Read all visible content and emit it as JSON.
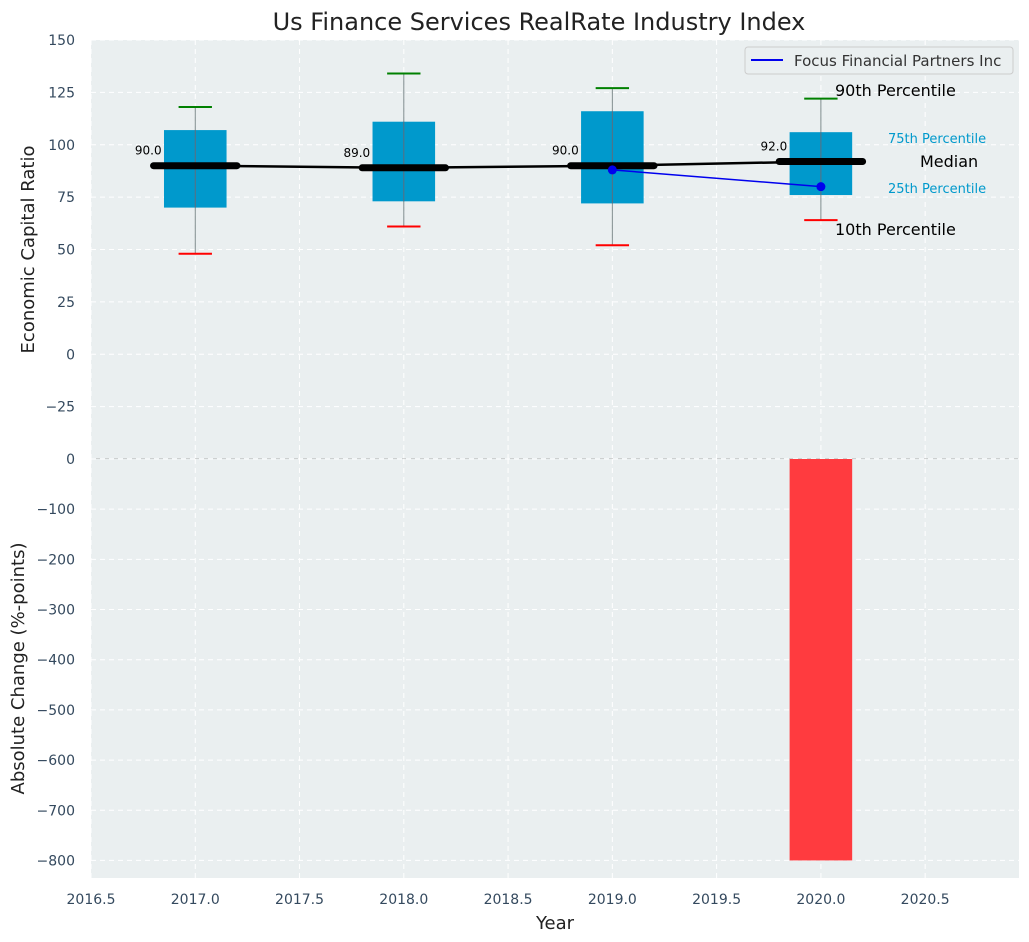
{
  "chart_data": [
    {
      "type": "box",
      "title": "Us Finance Services RealRate Industry Index",
      "ylabel": "Economic Capital Ratio",
      "ylim": [
        -50,
        150
      ],
      "yticks": [
        150,
        125,
        100,
        75,
        50,
        25,
        0,
        -25
      ],
      "ytick_labels": [
        "150",
        "125",
        "100",
        "75",
        "50",
        "25",
        "0",
        "−25"
      ],
      "grid": true,
      "legend": {
        "position": "top-right",
        "entries": [
          "Focus Financial Partners Inc"
        ]
      },
      "categories": [
        2017,
        2018,
        2019,
        2020
      ],
      "p10": [
        48,
        61,
        52,
        64
      ],
      "p25": [
        70,
        73,
        72,
        76
      ],
      "median": [
        90,
        89,
        90,
        92
      ],
      "p75": [
        107,
        111,
        116,
        106
      ],
      "p90": [
        118,
        134,
        127,
        122
      ],
      "median_labels": [
        "90.0",
        "89.0",
        "90.0",
        "92.0"
      ],
      "series": [
        {
          "name": "Focus Financial Partners Inc",
          "x": [
            2019,
            2020
          ],
          "values": [
            88,
            80
          ],
          "color": "#0000ee"
        }
      ],
      "annotations": {
        "p90": "90th Percentile",
        "p75": "75th Percentile",
        "median": "Median",
        "p25": "25th Percentile",
        "p10": "10th Percentile"
      },
      "colors": {
        "box": "#0099cc",
        "median": "#000000",
        "whisker_top": "#008000",
        "whisker_bottom": "#ff0000",
        "background": "#eaeff0"
      }
    },
    {
      "type": "bar",
      "xlabel": "Year",
      "ylabel": "Absolute Change (%-points)",
      "ylim": [
        -835,
        0
      ],
      "yticks": [
        0,
        -100,
        -200,
        -300,
        -400,
        -500,
        -600,
        -700,
        -800
      ],
      "ytick_labels": [
        "0",
        "−100",
        "−200",
        "−300",
        "−400",
        "−500",
        "−600",
        "−700",
        "−800"
      ],
      "xlim": [
        2016.5,
        2020.95
      ],
      "xticks": [
        2016.5,
        2017.0,
        2017.5,
        2018.0,
        2018.5,
        2019.0,
        2019.5,
        2020.0,
        2020.5
      ],
      "xtick_labels": [
        "2016.5",
        "2017.0",
        "2017.5",
        "2018.0",
        "2018.5",
        "2019.0",
        "2019.5",
        "2020.0",
        "2020.5"
      ],
      "grid": true,
      "categories": [
        2020
      ],
      "values": [
        -800
      ],
      "colors": {
        "bar": "#ff3b3f"
      }
    }
  ]
}
